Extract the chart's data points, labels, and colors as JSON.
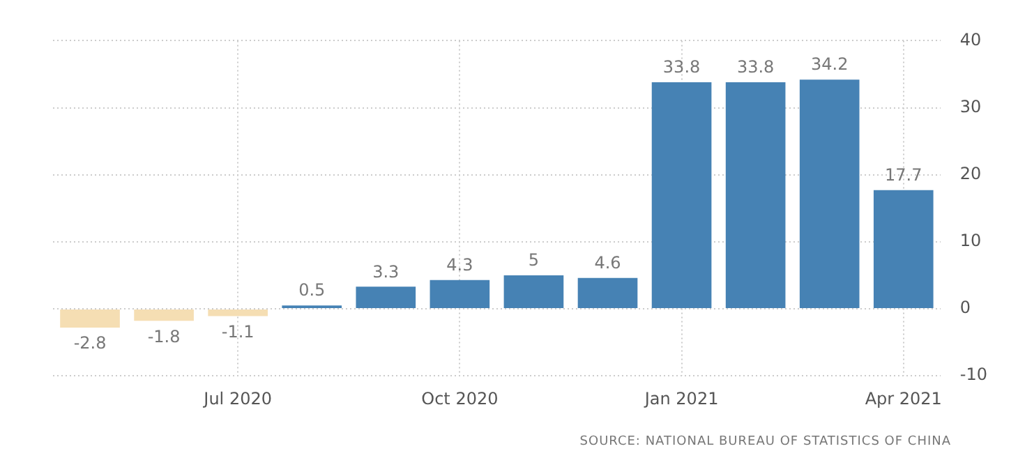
{
  "chart_data": {
    "type": "bar",
    "categories": [
      null,
      null,
      "Jul 2020",
      null,
      null,
      "Oct 2020",
      null,
      null,
      "Jan 2021",
      null,
      null,
      "Apr 2021"
    ],
    "values": [
      -2.8,
      -1.8,
      -1.1,
      0.5,
      3.3,
      4.3,
      5,
      4.6,
      33.8,
      33.8,
      34.2,
      17.7
    ],
    "colors": [
      "#f5deb3",
      "#f5deb3",
      "#f5deb3",
      "#4682b4",
      "#4682b4",
      "#4682b4",
      "#4682b4",
      "#4682b4",
      "#4682b4",
      "#4682b4",
      "#4682b4",
      "#4682b4"
    ],
    "ylim": [
      -10,
      40
    ],
    "yticks": [
      -10,
      0,
      10,
      20,
      30,
      40
    ],
    "grid": true,
    "data_labels": true,
    "legend": false,
    "annotations": [
      "SOURCE: NATIONAL BUREAU OF STATISTICS OF CHINA"
    ]
  }
}
